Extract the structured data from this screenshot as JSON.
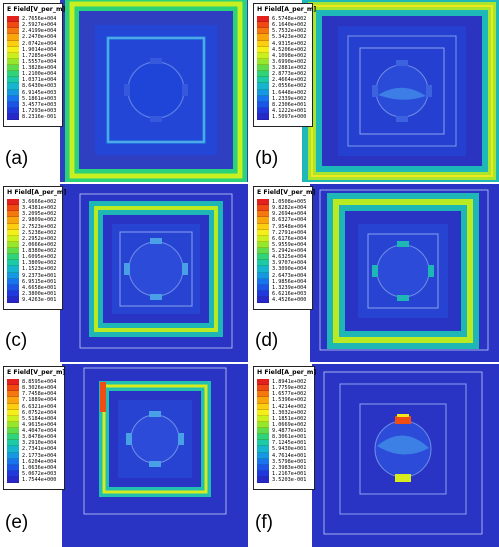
{
  "panels": [
    {
      "label": "(a)",
      "legend_title": "E Field[V_per_m]",
      "values": [
        "2.7656e+004",
        "2.5927e+004",
        "2.4199e+004",
        "2.2470e+004",
        "2.0742e+004",
        "1.9014e+004",
        "1.7285e+004",
        "1.5557e+004",
        "1.3828e+004",
        "1.2100e+004",
        "1.0371e+004",
        "8.6430e+003",
        "6.9145e+003",
        "5.1861e+003",
        "3.4577e+003",
        "1.7293e+003",
        "8.2316e-001"
      ]
    },
    {
      "label": "(b)",
      "legend_title": "H Field[A_per_m]",
      "values": [
        "6.5748e+002",
        "6.1640e+002",
        "5.7532e+002",
        "5.3423e+002",
        "4.9315e+002",
        "4.5206e+002",
        "4.1098e+002",
        "3.6990e+002",
        "3.2881e+002",
        "2.8773e+002",
        "2.4664e+002",
        "2.0556e+002",
        "1.6448e+002",
        "1.2339e+002",
        "8.2306e+001",
        "4.1222e+001",
        "1.5097e+000"
      ]
    },
    {
      "label": "(c)",
      "legend_title": "H Field[A_per_m]",
      "values": [
        "3.6666e+002",
        "3.4381e+002",
        "3.2095e+002",
        "2.9809e+002",
        "2.7523e+002",
        "2.5238e+002",
        "2.2952e+002",
        "2.0666e+002",
        "1.8380e+002",
        "1.6095e+002",
        "1.3809e+002",
        "1.1523e+002",
        "9.2373e+001",
        "6.9515e+001",
        "4.6658e+001",
        "2.3800e+001",
        "9.4263e-001"
      ]
    },
    {
      "label": "(d)",
      "legend_title": "E Field[V_per_m]",
      "values": [
        "1.0508e+005",
        "9.8282e+004",
        "9.2694e+004",
        "8.6327e+004",
        "7.9548e+004",
        "7.2791e+004",
        "6.6176e+004",
        "5.9559e+004",
        "5.2942e+004",
        "4.6325e+004",
        "3.9707e+004",
        "3.3090e+004",
        "2.6473e+004",
        "1.9856e+004",
        "1.3239e+004",
        "6.6216e+003",
        "4.4526e+000"
      ]
    },
    {
      "label": "(e)",
      "legend_title": "E Field[V_per_m]",
      "values": [
        "8.8595e+004",
        "8.3026e+004",
        "7.7458e+004",
        "7.1889e+004",
        "6.6321e+004",
        "6.0752e+004",
        "5.5184e+004",
        "4.9615e+004",
        "4.4047e+004",
        "3.8478e+004",
        "3.2910e+004",
        "2.7341e+004",
        "2.1773e+004",
        "1.6204e+004",
        "1.0636e+004",
        "5.0672e+003",
        "1.7544e+000"
      ]
    },
    {
      "label": "(f)",
      "legend_title": "H Field[A_per_m]",
      "values": [
        "1.8941e+002",
        "1.7759e+002",
        "1.6577e+002",
        "1.5396e+002",
        "1.4214e+002",
        "1.3032e+002",
        "1.1851e+002",
        "1.0669e+002",
        "9.4877e+001",
        "8.3061e+001",
        "7.1245e+001",
        "5.9430e+001",
        "4.7614e+001",
        "3.5798e+001",
        "2.3983e+001",
        "1.2167e+001",
        "3.5203e-001"
      ]
    }
  ],
  "colorscale": [
    "#e3201c",
    "#f04a12",
    "#f5780f",
    "#f9a50c",
    "#fbcf10",
    "#f4ef18",
    "#c9ef1c",
    "#96e62c",
    "#5edc4a",
    "#2fd47a",
    "#1ccaa8",
    "#16b5cf",
    "#1697e3",
    "#1874ee",
    "#1c54e8",
    "#2139dc",
    "#2828c8"
  ]
}
